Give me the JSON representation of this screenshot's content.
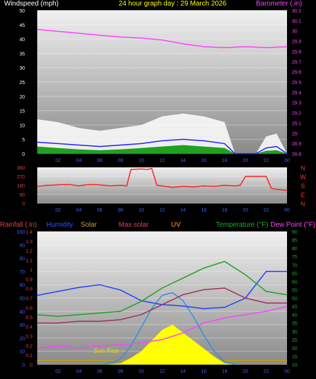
{
  "header": {
    "left": "Windspeed (mph)",
    "center": "24 hour graph day : 29 March 2026",
    "right": "Barometer (.in)"
  },
  "panel3_labels": [
    {
      "text": "Rainfall (.in)",
      "color": "#e04040"
    },
    {
      "text": "Humidity",
      "color": "#3050ff"
    },
    {
      "text": "Solar",
      "color": "#c8a040"
    },
    {
      "text": "Max solar",
      "color": "#e04060"
    },
    {
      "text": "UV",
      "color": "#ffa020"
    },
    {
      "text": "Temperature (°F)",
      "color": "#20b020"
    },
    {
      "text": "Dew Point (°F)",
      "color": "#ff40ff"
    }
  ],
  "compass": [
    "N",
    "W",
    "S",
    "E",
    "N"
  ],
  "sunrise_label": "Sun Rise",
  "colors": {
    "wind_gust": "#ffffff",
    "wind_avg": "#20a020",
    "wind_line": "#2020ff",
    "barometer": "#ff40ff",
    "direction": "#ff2020",
    "humidity": "#2040ff",
    "temperature": "#20a020",
    "dewpoint": "#ff40ff",
    "max_solar": "#3090e0",
    "solar": "#ffff00",
    "rain": "#c8a000",
    "feels": "#a03050"
  },
  "chart_data": [
    {
      "type": "line",
      "title": "24 hour graph day : 29 March 2026",
      "xlabel": "",
      "ylabel": "Windspeed (mph)",
      "y2label": "Barometer (.in)",
      "x_ticks": [
        "02",
        "04",
        "06",
        "08",
        "10",
        "12",
        "14",
        "16",
        "18",
        "20",
        "22",
        "00"
      ],
      "y_ticks": [
        "0",
        "5",
        "10",
        "15",
        "20",
        "25",
        "30",
        "35",
        "40",
        "45",
        "50"
      ],
      "y2_ticks": [
        "28.8",
        "28.9",
        "29",
        "29.1",
        "29.2",
        "29.3",
        "29.4",
        "29.5",
        "29.6",
        "29.7",
        "29.8",
        "29.9",
        "30",
        "30.1",
        "30.2"
      ],
      "ylim": [
        0,
        50
      ],
      "y2lim": [
        28.75,
        30.25
      ],
      "series": [
        {
          "name": "Barometer (.in)",
          "axis": "right",
          "x": [
            0,
            2,
            4,
            6,
            8,
            10,
            12,
            14,
            16,
            18,
            20,
            22,
            24
          ],
          "y": [
            30.05,
            30.03,
            30.01,
            29.99,
            29.97,
            29.96,
            29.94,
            29.9,
            29.87,
            29.86,
            29.87,
            29.86,
            29.87
          ]
        },
        {
          "axis": "left",
          "x": [
            0,
            2,
            4,
            6,
            8,
            10,
            12,
            14,
            16,
            18,
            19,
            20,
            21,
            22,
            23,
            24
          ],
          "y": [
            12,
            11,
            9,
            8,
            9,
            10,
            13,
            14,
            13,
            11,
            0,
            0,
            0,
            6,
            7,
            0
          ]
        },
        {
          "axis": "left",
          "x": [
            0,
            2,
            4,
            6,
            8,
            10,
            12,
            14,
            16,
            18,
            19,
            20,
            21,
            22,
            23,
            24
          ],
          "y": [
            4,
            3.5,
            3,
            2.5,
            3,
            3.5,
            4.5,
            5,
            4.5,
            3.5,
            0,
            0,
            0,
            2,
            2.5,
            0
          ]
        },
        {
          "axis": "left",
          "x": [
            0,
            2,
            4,
            6,
            8,
            10,
            12,
            14,
            16,
            18,
            19,
            20,
            21,
            22,
            23,
            24
          ],
          "y": [
            2.5,
            2,
            1.5,
            1.2,
            1.5,
            2,
            2.5,
            3,
            2.5,
            2,
            0,
            0,
            0,
            1,
            1.2,
            0
          ]
        }
      ]
    },
    {
      "type": "line",
      "ylabel": "",
      "y_ticks": [
        "0",
        "90",
        "180",
        "270",
        "360"
      ],
      "ylim": [
        0,
        360
      ],
      "y2_ticks": [
        "N",
        "W",
        "S",
        "E",
        "N"
      ],
      "series": [
        {
          "axis": "left",
          "x": [
            0,
            1,
            2,
            3,
            4,
            5,
            6,
            7,
            8,
            8.6,
            9,
            10,
            10.6,
            11,
            11.5,
            12,
            13,
            14,
            15,
            16,
            17,
            18,
            19,
            19.5,
            20,
            21,
            22,
            22.5,
            23,
            24
          ],
          "y": [
            170,
            180,
            185,
            190,
            175,
            190,
            185,
            175,
            180,
            175,
            340,
            345,
            340,
            350,
            180,
            175,
            160,
            170,
            165,
            175,
            170,
            180,
            175,
            180,
            270,
            270,
            270,
            150,
            140,
            130
          ]
        }
      ]
    },
    {
      "type": "line",
      "y_ticks": [
        "0",
        "10",
        "20",
        "30",
        "40",
        "50",
        "60",
        "70",
        "80",
        "90",
        "100"
      ],
      "y_ticks_rain": [
        "0",
        "0.1",
        "0.2",
        "0.3",
        "0.4",
        "0.5",
        "0.6",
        "0.7",
        "0.8",
        "0.9",
        "1",
        "1.1",
        "1.2",
        "1.3",
        "1.4"
      ],
      "y2_ticks": [
        "10",
        "15",
        "20",
        "25",
        "30",
        "35",
        "40",
        "45",
        "50",
        "55",
        "60",
        "65",
        "70",
        "75",
        "80",
        "85",
        "90"
      ],
      "ylim": [
        0,
        100
      ],
      "y2lim": [
        10,
        90
      ],
      "series": [
        {
          "name": "Humidity",
          "axis": "left",
          "x": [
            0,
            2,
            4,
            6,
            8,
            10,
            12,
            14,
            16,
            18,
            20,
            22,
            24
          ],
          "y": [
            52,
            55,
            58,
            60,
            56,
            48,
            45,
            44,
            42,
            43,
            50,
            70,
            70
          ]
        },
        {
          "name": "Temperature (°F)",
          "axis": "right",
          "x": [
            0,
            2,
            4,
            6,
            8,
            10,
            12,
            14,
            16,
            18,
            20,
            22,
            24
          ],
          "y": [
            40,
            39,
            40,
            41,
            42,
            48,
            56,
            62,
            68,
            72,
            64,
            54,
            52
          ]
        },
        {
          "axis": "right",
          "x": [
            0,
            2,
            4,
            6,
            8,
            10,
            12,
            14,
            16,
            18,
            20,
            22,
            24
          ],
          "y": [
            35,
            35,
            36,
            36,
            37,
            40,
            46,
            52,
            55,
            56,
            50,
            47,
            47
          ]
        },
        {
          "name": "Dew Point (°F)",
          "axis": "right",
          "x": [
            0,
            2,
            4,
            6,
            8,
            10,
            12,
            14,
            16,
            18,
            20,
            22,
            24
          ],
          "y": [
            20,
            21,
            20,
            21,
            22,
            23,
            25,
            29,
            35,
            38,
            40,
            42,
            45
          ]
        },
        {
          "name": "Max solar",
          "axis": "left",
          "x": [
            6.5,
            8,
            9,
            10,
            11,
            12,
            13,
            14,
            15,
            16,
            17,
            18,
            19
          ],
          "y": [
            0,
            4,
            14,
            28,
            42,
            52,
            54,
            48,
            36,
            22,
            10,
            2,
            0
          ]
        },
        {
          "name": "Solar",
          "axis": "left",
          "x": [
            6.5,
            8,
            9,
            10,
            11,
            12,
            13,
            14,
            15,
            16,
            17,
            18,
            19
          ],
          "y": [
            0,
            1,
            5,
            10,
            18,
            26,
            30,
            24,
            18,
            12,
            6,
            1,
            0
          ]
        }
      ]
    }
  ]
}
